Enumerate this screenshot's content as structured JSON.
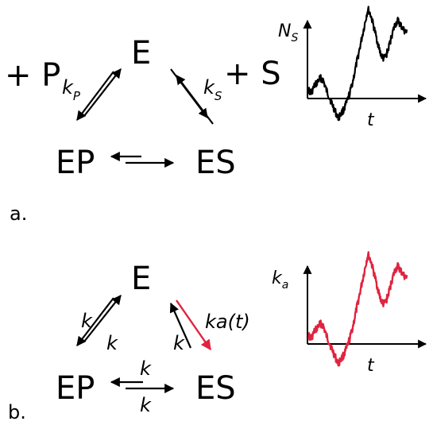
{
  "panel_a": {
    "label": "a.",
    "species": {
      "E": "E",
      "EP": "EP",
      "ES": "ES",
      "plus_P": "+ P",
      "plus_S": "+ S"
    },
    "rates": {
      "kP_main": "k",
      "kP_sub": "P",
      "kS_main": "k",
      "kS_sub": "S"
    },
    "plot": {
      "ylabel_main": "N",
      "ylabel_sub": "S",
      "xlabel": "t"
    }
  },
  "panel_b": {
    "label": "b.",
    "species": {
      "E": "E",
      "EP": "EP",
      "ES": "ES"
    },
    "rates": {
      "k_left_outer": "k",
      "k_left_inner": "k",
      "k_right_inner": "k",
      "ka_t": "ka(t)",
      "k_top": "k",
      "k_bottom": "k"
    },
    "plot": {
      "ylabel_main": "k",
      "ylabel_sub": "a",
      "xlabel": "t"
    }
  },
  "colors": {
    "ink": "#000000",
    "accent": "#e0243f"
  },
  "trace_shape": [
    0.3,
    0.27,
    0.33,
    0.36,
    0.4,
    0.38,
    0.3,
    0.24,
    0.18,
    0.12,
    0.06,
    0.1,
    0.14,
    0.2,
    0.28,
    0.38,
    0.5,
    0.62,
    0.74,
    0.86,
    0.98,
    0.92,
    0.82,
    0.72,
    0.62,
    0.56,
    0.58,
    0.66,
    0.76,
    0.84,
    0.88,
    0.84,
    0.8,
    0.78
  ]
}
